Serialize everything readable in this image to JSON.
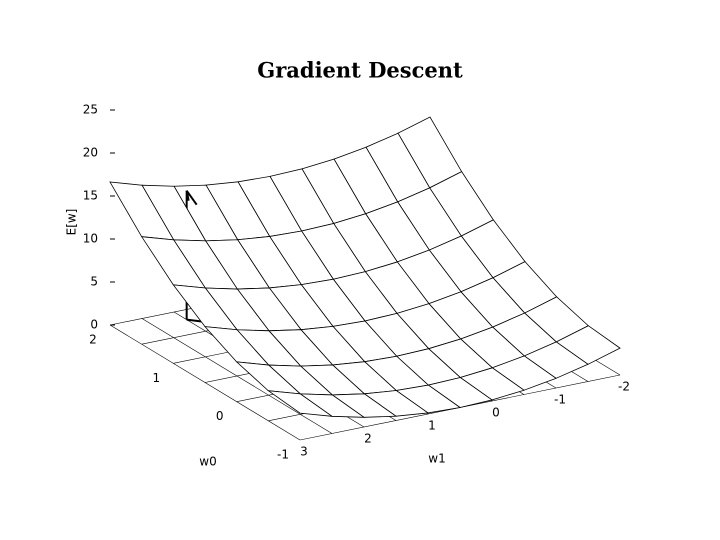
{
  "chart_data": {
    "type": "surface3d",
    "title": "Gradient Descent",
    "xlabel": "w1",
    "ylabel": "w0",
    "zlabel": "E[w]",
    "w0lim": [
      -1,
      2
    ],
    "w0ticks": [
      -1,
      0,
      1,
      2
    ],
    "w1lim": [
      -2,
      3
    ],
    "w1ticks": [
      -2,
      -1,
      0,
      1,
      2,
      3
    ],
    "zlim": [
      0,
      25
    ],
    "zticks": [
      0,
      5,
      10,
      15,
      20,
      25
    ],
    "w0": [
      -1,
      -0.5,
      0,
      0.5,
      1,
      1.5,
      2
    ],
    "w1": [
      -2,
      -1.5,
      -1,
      -0.5,
      0,
      0.5,
      1,
      1.5,
      2,
      2.5,
      3
    ],
    "z": [
      [
        3.125,
        2,
        1.125,
        0.5,
        0.125,
        0,
        0.125,
        0.5,
        1.125,
        2,
        3.125
      ],
      [
        3.5,
        2.375,
        1.5,
        0.875,
        0.5,
        0.375,
        0.5,
        0.875,
        1.5,
        2.375,
        3.5
      ],
      [
        4.625,
        3.5,
        2.625,
        2,
        1.625,
        1.5,
        1.625,
        2,
        2.625,
        3.5,
        4.625
      ],
      [
        6.5,
        5.375,
        4.5,
        3.875,
        3.5,
        3.375,
        3.5,
        3.875,
        4.5,
        5.375,
        6.5
      ],
      [
        9.125,
        8,
        7.125,
        6.5,
        6.125,
        6,
        6.125,
        6.5,
        7.125,
        8,
        9.125
      ],
      [
        12.5,
        11.375,
        10.5,
        9.875,
        9.5,
        9.375,
        9.5,
        9.875,
        10.5,
        11.375,
        12.5
      ],
      [
        16.625,
        15.5,
        14.625,
        14,
        13.625,
        13.5,
        13.625,
        14,
        14.625,
        15.5,
        16.625
      ]
    ],
    "marker": {
      "w0": 1.8,
      "w1": 2,
      "E": 15
    },
    "color": "#000000"
  }
}
